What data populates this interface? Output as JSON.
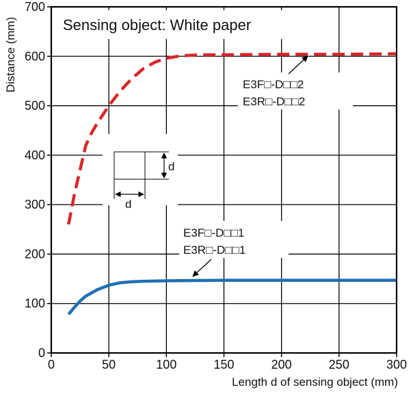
{
  "chart_data": {
    "type": "line",
    "title": "Sensing object: White paper",
    "xlabel": "Length d of sensing object (mm)",
    "ylabel": "Distance (mm)",
    "xlim": [
      0,
      300
    ],
    "ylim": [
      0,
      700
    ],
    "xticks": [
      0,
      50,
      100,
      150,
      200,
      250,
      300
    ],
    "yticks": [
      0,
      100,
      200,
      300,
      400,
      500,
      600,
      700
    ],
    "grid": true,
    "series": [
      {
        "name": "E3F□-D□□2 / E3R□-D□□2",
        "label_lines": [
          "E3F□-D□□2",
          "E3R□-D□□2"
        ],
        "color": "#d8262a",
        "style": "dashed",
        "x": [
          15,
          20,
          25,
          30,
          35,
          40,
          50,
          60,
          70,
          80,
          90,
          100,
          110,
          120,
          130,
          150,
          200,
          250,
          300
        ],
        "y": [
          260,
          320,
          370,
          420,
          445,
          465,
          500,
          530,
          555,
          575,
          588,
          596,
          600,
          602,
          603,
          603,
          604,
          604,
          605
        ]
      },
      {
        "name": "E3F□-D□□1 / E3R□-D□□1",
        "label_lines": [
          "E3F□-D□□1",
          "E3R□-D□□1"
        ],
        "color": "#1f6fb4",
        "style": "solid",
        "x": [
          15,
          20,
          25,
          30,
          40,
          50,
          60,
          70,
          80,
          100,
          150,
          200,
          250,
          300
        ],
        "y": [
          78,
          92,
          105,
          115,
          128,
          137,
          142,
          144,
          145,
          146,
          147,
          147,
          147,
          147
        ]
      }
    ],
    "annotations": [
      {
        "text": "E3F□-D□□2",
        "series": 0
      },
      {
        "text": "E3R□-D□□2",
        "series": 0
      },
      {
        "text": "E3F□-D□□1",
        "series": 1
      },
      {
        "text": "E3R□-D□□1",
        "series": 1
      }
    ],
    "inset_label": "d"
  }
}
